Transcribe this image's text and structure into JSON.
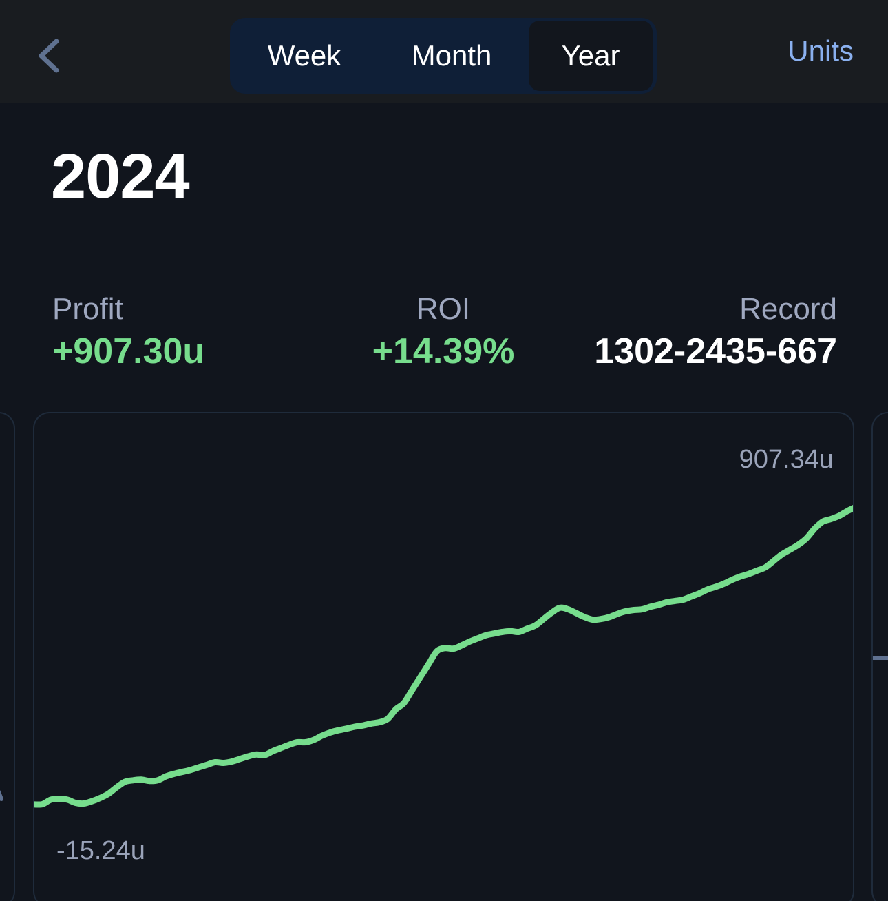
{
  "nav": {
    "tabs": [
      {
        "label": "Week",
        "selected": false
      },
      {
        "label": "Month",
        "selected": false
      },
      {
        "label": "Year",
        "selected": true
      }
    ],
    "units_label": "Units",
    "colors": {
      "accent": "#8ab0ef",
      "segment_bg": "#0f1f37"
    }
  },
  "title": "2024",
  "stats": {
    "profit": {
      "label": "Profit",
      "value": "+907.30u"
    },
    "roi": {
      "label": "ROI",
      "value": "+14.39%"
    },
    "record": {
      "label": "Record",
      "value": "1302-2435-667"
    }
  },
  "colors": {
    "positive": "#77dd8d",
    "muted": "#9fa8c0",
    "background": "#11151d"
  },
  "chart_data": {
    "type": "line",
    "max_label": "907.34u",
    "min_label": "-15.24u",
    "ylim": [
      -15.24,
      907.34
    ],
    "grid": false,
    "series": [
      {
        "color": "#77dd8d",
        "x": [
          0,
          1,
          2,
          3,
          4,
          5,
          6,
          7,
          8,
          9,
          10,
          11,
          12,
          13,
          14,
          15,
          16,
          17,
          18,
          19,
          20,
          21,
          22,
          23,
          24,
          25,
          26,
          27,
          28,
          29,
          30,
          31,
          32,
          33,
          34,
          35,
          36,
          37,
          38,
          39,
          40,
          41,
          42,
          43,
          44,
          45,
          46,
          47,
          48,
          49,
          50,
          51,
          52,
          53,
          54,
          55,
          56,
          57,
          58,
          59,
          60,
          61,
          62,
          63,
          64,
          65,
          66,
          67,
          68,
          69,
          70,
          71,
          72,
          73,
          74,
          75,
          76,
          77,
          78,
          79,
          80,
          81,
          82,
          83,
          84,
          85,
          86,
          87,
          88,
          89,
          90,
          91,
          92,
          93,
          94,
          95,
          96,
          97,
          98,
          99,
          100
        ],
        "values": [
          -15,
          -14,
          0,
          2,
          0,
          -10,
          -12,
          -5,
          5,
          18,
          38,
          55,
          60,
          62,
          58,
          60,
          72,
          80,
          86,
          92,
          100,
          108,
          116,
          114,
          118,
          126,
          134,
          140,
          138,
          150,
          160,
          170,
          178,
          178,
          185,
          198,
          208,
          215,
          220,
          226,
          230,
          236,
          240,
          250,
          280,
          300,
          340,
          380,
          420,
          460,
          470,
          468,
          478,
          490,
          500,
          510,
          515,
          520,
          522,
          520,
          530,
          540,
          560,
          580,
          595,
          590,
          578,
          566,
          558,
          560,
          566,
          576,
          584,
          588,
          590,
          598,
          604,
          612,
          616,
          620,
          630,
          640,
          652,
          660,
          670,
          682,
          692,
          700,
          710,
          720,
          740,
          760,
          775,
          790,
          810,
          840,
          862,
          870,
          880,
          895,
          907
        ]
      }
    ]
  }
}
